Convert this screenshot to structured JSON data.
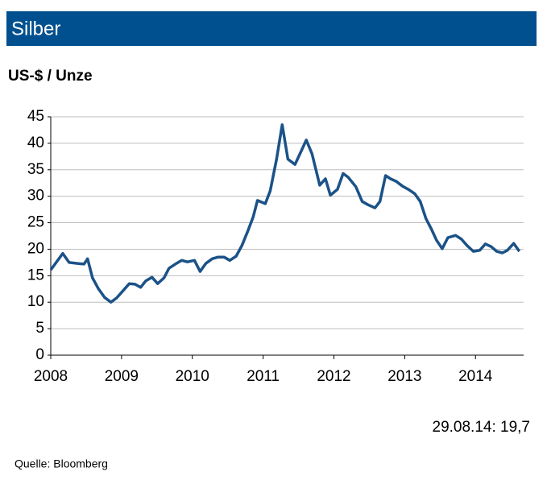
{
  "chart_data": {
    "type": "line",
    "title": "Silber",
    "y_label": "US-$ / Unze",
    "annotation": "29.08.14: 19,7",
    "source": "Quelle:  Bloomberg",
    "x": [
      2008.0,
      2008.17,
      2008.26,
      2008.39,
      2008.47,
      2008.52,
      2008.59,
      2008.67,
      2008.76,
      2008.85,
      2008.93,
      2009.01,
      2009.11,
      2009.19,
      2009.27,
      2009.34,
      2009.43,
      2009.51,
      2009.6,
      2009.67,
      2009.76,
      2009.85,
      2009.93,
      2010.03,
      2010.11,
      2010.19,
      2010.28,
      2010.36,
      2010.45,
      2010.53,
      2010.62,
      2010.7,
      2010.78,
      2010.86,
      2010.92,
      2011.03,
      2011.1,
      2011.19,
      2011.27,
      2011.35,
      2011.45,
      2011.53,
      2011.61,
      2011.69,
      2011.8,
      2011.88,
      2011.95,
      2012.05,
      2012.13,
      2012.2,
      2012.31,
      2012.4,
      2012.48,
      2012.58,
      2012.65,
      2012.73,
      2012.8,
      2012.88,
      2012.97,
      2013.05,
      2013.14,
      2013.22,
      2013.3,
      2013.38,
      2013.45,
      2013.53,
      2013.61,
      2013.72,
      2013.8,
      2013.88,
      2013.97,
      2014.06,
      2014.14,
      2014.22,
      2014.3,
      2014.38,
      2014.45,
      2014.54,
      2014.62
    ],
    "series": [
      {
        "name": "Silber",
        "color": "#1b5288",
        "values": [
          16.1,
          19.2,
          17.5,
          17.3,
          17.2,
          18.2,
          14.6,
          12.6,
          10.9,
          10.0,
          10.8,
          12.0,
          13.5,
          13.4,
          12.8,
          14.0,
          14.7,
          13.5,
          14.6,
          16.4,
          17.2,
          17.9,
          17.6,
          17.9,
          15.8,
          17.3,
          18.2,
          18.5,
          18.5,
          17.9,
          18.7,
          20.7,
          23.3,
          26.1,
          29.2,
          28.6,
          31.0,
          37.0,
          43.5,
          37.0,
          36.0,
          38.3,
          40.6,
          38.0,
          32.1,
          33.3,
          30.2,
          31.3,
          34.3,
          33.6,
          31.8,
          29.0,
          28.4,
          27.8,
          29.0,
          33.9,
          33.3,
          32.8,
          31.9,
          31.3,
          30.5,
          29.0,
          25.8,
          23.7,
          21.7,
          20.1,
          22.2,
          22.6,
          21.9,
          20.7,
          19.6,
          19.8,
          21.0,
          20.5,
          19.6,
          19.3,
          19.8,
          21.1,
          19.6
        ]
      }
    ],
    "xlim": [
      2008,
      2014.68
    ],
    "xticks": [
      2008,
      2009,
      2010,
      2011,
      2012,
      2013,
      2014
    ],
    "ylim": [
      0,
      45
    ],
    "yticks": [
      0,
      5,
      10,
      15,
      20,
      25,
      30,
      35,
      40,
      45
    ],
    "grid": true
  }
}
